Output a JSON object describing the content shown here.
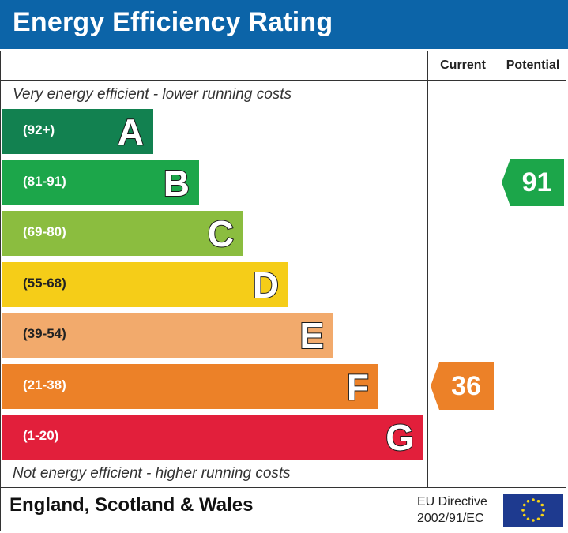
{
  "title": "Energy Efficiency Rating",
  "columns": {
    "current": "Current",
    "potential": "Potential"
  },
  "top_note": "Very energy efficient - lower running costs",
  "bottom_note": "Not energy efficient - higher running costs",
  "footer": {
    "region": "England, Scotland & Wales",
    "directive_line1": "EU Directive",
    "directive_line2": "2002/91/EC"
  },
  "colors": {
    "title_bar": "#0c64a8",
    "A": "#128150",
    "B": "#1ca64a",
    "C": "#8bbd3f",
    "D": "#f5cd18",
    "E": "#f2aa6c",
    "F": "#ec8128",
    "G": "#e21f3b",
    "eu_flag": "#1e3a8f",
    "eu_star": "#f7d417"
  },
  "chart_data": {
    "type": "bar",
    "bands": [
      {
        "letter": "A",
        "range": "(92+)"
      },
      {
        "letter": "B",
        "range": "(81-91)"
      },
      {
        "letter": "C",
        "range": "(69-80)"
      },
      {
        "letter": "D",
        "range": "(55-68)"
      },
      {
        "letter": "E",
        "range": "(39-54)"
      },
      {
        "letter": "F",
        "range": "(21-38)"
      },
      {
        "letter": "G",
        "range": "(1-20)"
      }
    ],
    "current": {
      "value": "36",
      "band": "F"
    },
    "potential": {
      "value": "91",
      "band": "B"
    }
  }
}
